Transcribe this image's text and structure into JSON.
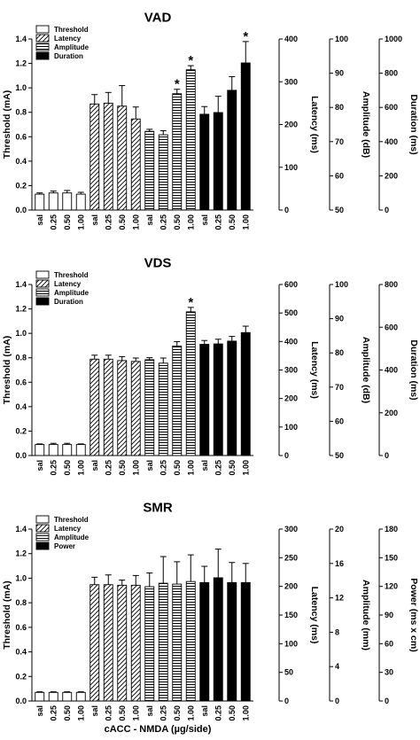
{
  "figure": {
    "x_axis_label": "cACC - NMDA (µg/side)"
  },
  "chart_data": [
    {
      "type": "bar",
      "title": "VAD",
      "dose_labels": [
        "sal",
        "0.25",
        "0.50",
        "1.00"
      ],
      "legend": [
        "Threshold",
        "Latency",
        "Amplitude",
        "Duration"
      ],
      "axes": [
        {
          "label": "Threshold (mA)",
          "ylim": [
            0,
            1.4
          ],
          "ticks": [
            "0.0",
            "0.2",
            "0.4",
            "0.6",
            "0.8",
            "1.0",
            "1.2",
            "1.4"
          ]
        },
        {
          "label": "Latency (ms)",
          "ylim": [
            0,
            400
          ],
          "ticks": [
            "0",
            "100",
            "200",
            "300",
            "400"
          ]
        },
        {
          "label": "Amplitude (dB)",
          "ylim": [
            50,
            100
          ],
          "ticks": [
            "50",
            "60",
            "70",
            "80",
            "90",
            "100"
          ]
        },
        {
          "label": "Duration (ms)",
          "ylim": [
            0,
            1000
          ],
          "ticks": [
            "0",
            "200",
            "400",
            "600",
            "800",
            "1000"
          ]
        }
      ],
      "series": [
        {
          "name": "Threshold",
          "axis": 0,
          "pattern": "open",
          "values": [
            0.13,
            0.14,
            0.14,
            0.13
          ],
          "errors": [
            0.01,
            0.015,
            0.02,
            0.015
          ],
          "significant": [
            false,
            false,
            false,
            false
          ]
        },
        {
          "name": "Latency",
          "axis": 1,
          "pattern": "diagonal",
          "values": [
            248,
            250,
            243,
            213
          ],
          "errors": [
            22,
            25,
            48,
            28
          ],
          "significant": [
            false,
            false,
            false,
            false
          ]
        },
        {
          "name": "Amplitude",
          "axis": 2,
          "pattern": "horizontal",
          "values": [
            73,
            72,
            84,
            91
          ],
          "errors": [
            0.6,
            1.2,
            1.3,
            1.2
          ],
          "significant": [
            false,
            false,
            true,
            true
          ]
        },
        {
          "name": "Duration",
          "axis": 3,
          "pattern": "solid",
          "values": [
            560,
            570,
            700,
            860
          ],
          "errors": [
            45,
            95,
            80,
            125
          ],
          "significant": [
            false,
            false,
            false,
            true
          ]
        }
      ]
    },
    {
      "type": "bar",
      "title": "VDS",
      "dose_labels": [
        "sal",
        "0.25",
        "0.50",
        "1.00"
      ],
      "legend": [
        "Threshold",
        "Latency",
        "Amplitude",
        "Duration"
      ],
      "axes": [
        {
          "label": "Threshold (mA)",
          "ylim": [
            0,
            1.4
          ],
          "ticks": [
            "0.0",
            "0.2",
            "0.4",
            "0.6",
            "0.8",
            "1.0",
            "1.2",
            "1.4"
          ]
        },
        {
          "label": "Latency (ms)",
          "ylim": [
            0,
            600
          ],
          "ticks": [
            "0",
            "100",
            "200",
            "300",
            "400",
            "500",
            "600"
          ]
        },
        {
          "label": "Amplitude (dB)",
          "ylim": [
            50,
            100
          ],
          "ticks": [
            "50",
            "60",
            "70",
            "80",
            "90",
            "100"
          ]
        },
        {
          "label": "Duration (ms)",
          "ylim": [
            0,
            800
          ],
          "ticks": [
            "0",
            "200",
            "400",
            "600",
            "800"
          ]
        }
      ],
      "series": [
        {
          "name": "Threshold",
          "axis": 0,
          "pattern": "open",
          "values": [
            0.09,
            0.09,
            0.09,
            0.09
          ],
          "errors": [
            0.005,
            0.01,
            0.01,
            0.005
          ],
          "significant": [
            false,
            false,
            false,
            false
          ]
        },
        {
          "name": "Latency",
          "axis": 1,
          "pattern": "diagonal",
          "values": [
            338,
            338,
            333,
            330
          ],
          "errors": [
            14,
            14,
            14,
            12
          ],
          "significant": [
            false,
            false,
            false,
            false
          ]
        },
        {
          "name": "Amplitude",
          "axis": 2,
          "pattern": "horizontal",
          "values": [
            78,
            77,
            82,
            92
          ],
          "errors": [
            0.6,
            1.5,
            1.3,
            1.3
          ],
          "significant": [
            false,
            false,
            false,
            true
          ]
        },
        {
          "name": "Duration",
          "axis": 3,
          "pattern": "solid",
          "values": [
            520,
            522,
            535,
            575
          ],
          "errors": [
            18,
            22,
            22,
            30
          ],
          "significant": [
            false,
            false,
            false,
            false
          ]
        }
      ]
    },
    {
      "type": "bar",
      "title": "SMR",
      "dose_labels": [
        "sal",
        "0.25",
        "0.50",
        "1.00"
      ],
      "legend": [
        "Threshold",
        "Latency",
        "Amplitude",
        "Power"
      ],
      "axes": [
        {
          "label": "Threshold (mA)",
          "ylim": [
            0,
            1.4
          ],
          "ticks": [
            "0.0",
            "0.2",
            "0.4",
            "0.6",
            "0.8",
            "1.0",
            "1.2",
            "1.4"
          ]
        },
        {
          "label": "Latency (ms)",
          "ylim": [
            0,
            300
          ],
          "ticks": [
            "0",
            "50",
            "100",
            "150",
            "200",
            "250",
            "300"
          ]
        },
        {
          "label": "Amplitude (mm)",
          "ylim": [
            0,
            20
          ],
          "ticks": [
            "0",
            "4",
            "8",
            "12",
            "16",
            "20"
          ]
        },
        {
          "label": "Power (ms x cm)",
          "ylim": [
            0,
            180
          ],
          "ticks": [
            "0",
            "30",
            "60",
            "90",
            "120",
            "150",
            "180"
          ]
        }
      ],
      "series": [
        {
          "name": "Threshold",
          "axis": 0,
          "pattern": "open",
          "values": [
            0.07,
            0.07,
            0.07,
            0.07
          ],
          "errors": [
            0.005,
            0.005,
            0.005,
            0.005
          ],
          "significant": [
            false,
            false,
            false,
            false
          ]
        },
        {
          "name": "Latency",
          "axis": 1,
          "pattern": "diagonal",
          "values": [
            203,
            203,
            202,
            202
          ],
          "errors": [
            13,
            17,
            9,
            17
          ],
          "significant": [
            false,
            false,
            false,
            false
          ]
        },
        {
          "name": "Amplitude",
          "axis": 2,
          "pattern": "horizontal",
          "values": [
            13.3,
            13.7,
            13.6,
            13.9
          ],
          "errors": [
            1.6,
            3.1,
            2.6,
            3.1
          ],
          "significant": [
            false,
            false,
            false,
            false
          ]
        },
        {
          "name": "Power",
          "axis": 3,
          "pattern": "solid",
          "values": [
            124,
            129,
            124,
            124
          ],
          "errors": [
            17,
            30,
            21,
            20
          ],
          "significant": [
            false,
            false,
            false,
            false
          ]
        }
      ]
    }
  ]
}
